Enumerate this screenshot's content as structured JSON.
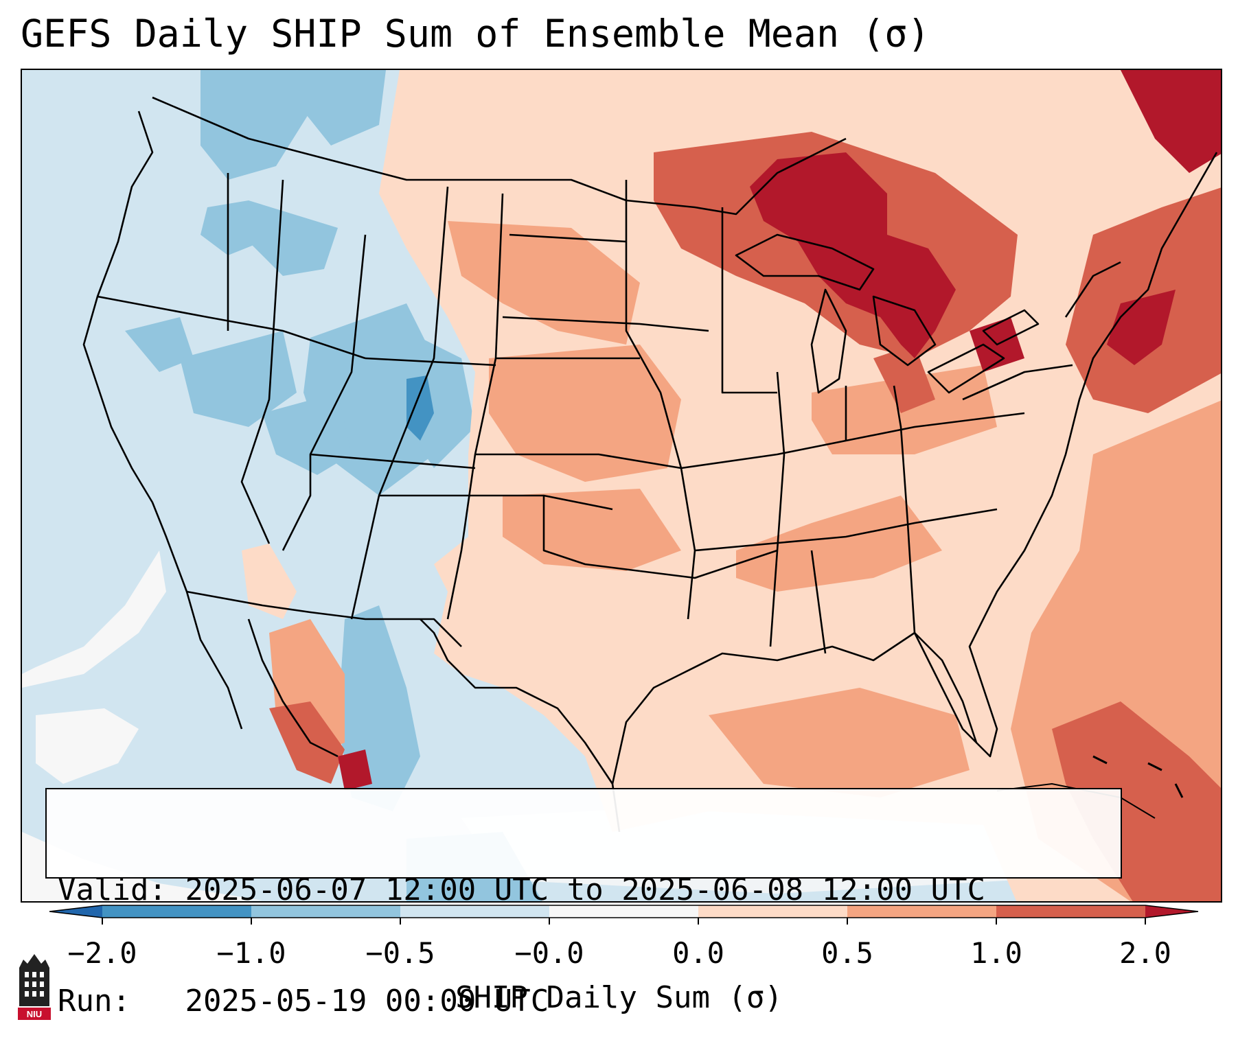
{
  "title": "GEFS Daily SHIP Sum of Ensemble Mean (σ)",
  "info": {
    "valid_label": "Valid:",
    "valid_value": "2025-06-07 12:00 UTC to 2025-06-08 12:00 UTC",
    "run_label": "Run:",
    "run_value": "2025-05-19 00:00 UTC"
  },
  "colorbar": {
    "label": "SHIP Daily Sum (σ)",
    "ticks": [
      "−2.0",
      "−1.0",
      "−0.5",
      "−0.0",
      "0.0",
      "0.5",
      "1.0",
      "2.0"
    ],
    "colors": {
      "under": "#2166ac",
      "bin_neg2_neg1": "#4393c3",
      "bin_neg1_neg05": "#92c5de",
      "bin_neg05_0": "#d1e5f0",
      "bin_0": "#f7f7f7",
      "bin_0_05": "#fddbc7",
      "bin_05_1": "#f4a582",
      "bin_1_2": "#d6604d",
      "over": "#b2182b"
    }
  },
  "logo": {
    "text": "NIU",
    "icon": "niu-logo-icon"
  }
}
